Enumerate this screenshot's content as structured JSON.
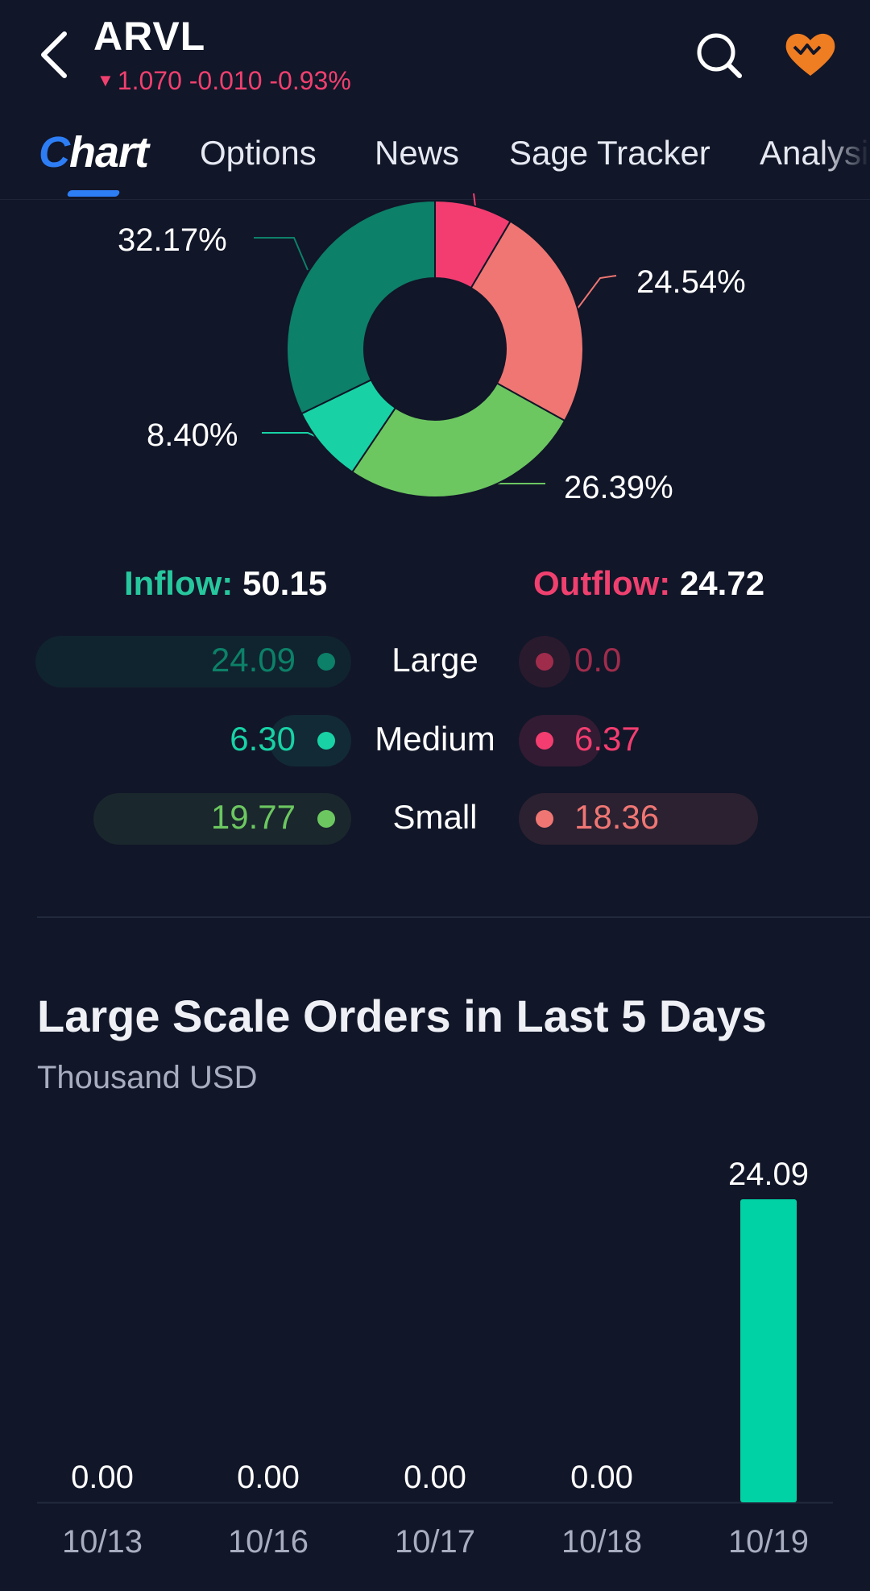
{
  "header": {
    "ticker": "ARVL",
    "quote": "1.070 -0.010 -0.93%",
    "colors": {
      "down": "#f0406f",
      "heart": "#ef7d22"
    }
  },
  "tabs": [
    {
      "label": "Chart",
      "active": true
    },
    {
      "label": "Options"
    },
    {
      "label": "News"
    },
    {
      "label": "Sage Tracker"
    },
    {
      "label": "Analysis"
    }
  ],
  "flow": {
    "inflow_label": "Inflow:",
    "inflow_value": "50.15",
    "outflow_label": "Outflow:",
    "outflow_value": "24.72",
    "rows": [
      {
        "category": "Large",
        "inflow": "24.09",
        "outflow": "0.0",
        "inflow_color": "#0c8068",
        "outflow_color": "#a02c4c"
      },
      {
        "category": "Medium",
        "inflow": "6.30",
        "outflow": "6.37",
        "inflow_color": "#18d2a5",
        "outflow_color": "#f33d70"
      },
      {
        "category": "Small",
        "inflow": "19.77",
        "outflow": "18.36",
        "inflow_color": "#6cc760",
        "outflow_color": "#ef7673"
      }
    ]
  },
  "donut_chart": {
    "type": "pie",
    "labels": [
      "32.17%",
      "24.54%",
      "8.40%",
      "26.39%"
    ],
    "slices": [
      {
        "name": "Large Outflow",
        "value": 0.0,
        "color": "#a02c4c"
      },
      {
        "name": "Medium Outflow",
        "value": 8.49,
        "color": "#f33d70"
      },
      {
        "name": "Small Outflow",
        "value": 24.54,
        "color": "#ef7673"
      },
      {
        "name": "Small Inflow",
        "value": 26.39,
        "color": "#6cc760"
      },
      {
        "name": "Medium Inflow",
        "value": 8.4,
        "color": "#18d2a5"
      },
      {
        "name": "Large Inflow",
        "value": 32.17,
        "color": "#0c8068"
      }
    ]
  },
  "orders": {
    "title": "Large Scale Orders in Last 5 Days",
    "subtitle": "Thousand USD"
  },
  "chart_data": {
    "type": "bar",
    "title": "Large Scale Orders in Last 5 Days",
    "ylabel": "Thousand USD",
    "categories": [
      "10/13",
      "10/16",
      "10/17",
      "10/18",
      "10/19"
    ],
    "values": [
      0.0,
      0.0,
      0.0,
      0.0,
      24.09
    ],
    "value_labels": [
      "0.00",
      "0.00",
      "0.00",
      "0.00",
      "24.09"
    ],
    "bar_color": "#00d2a5",
    "ylim": [
      0,
      24.09
    ]
  }
}
